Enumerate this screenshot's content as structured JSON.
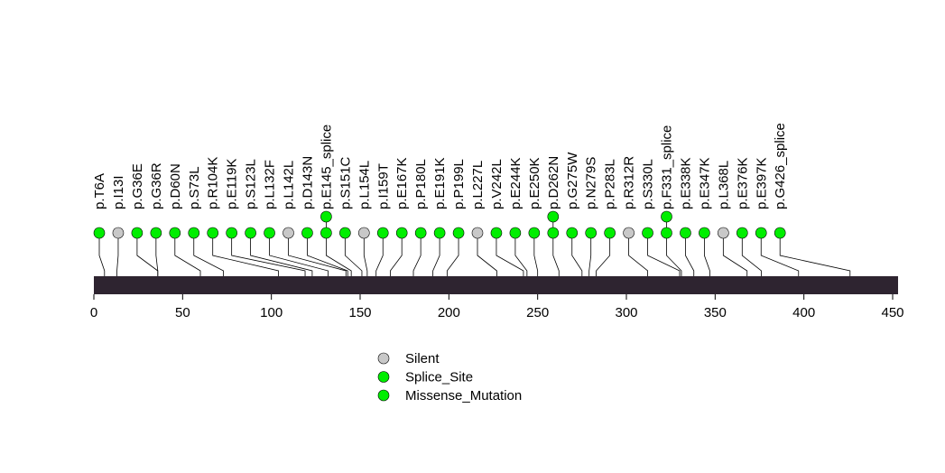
{
  "chart_data": {
    "type": "lollipop",
    "title": "",
    "xlabel": "",
    "ylabel": "",
    "protein_length": 452,
    "xlim": [
      0,
      450
    ],
    "x_ticks": [
      0,
      50,
      100,
      150,
      200,
      250,
      300,
      350,
      400,
      450
    ],
    "colors": {
      "Silent": "#c8c8c8",
      "Splice_Site": "#00ee00",
      "Missense_Mutation": "#00ee00",
      "protein_bar": "#2e2430"
    },
    "legend": [
      {
        "label": "Silent",
        "type": "Silent"
      },
      {
        "label": "Splice_Site",
        "type": "Splice_Site"
      },
      {
        "label": "Missense_Mutation",
        "type": "Missense_Mutation"
      }
    ],
    "mutations": [
      {
        "label": "p.T6A",
        "position": 6,
        "type": "Missense_Mutation"
      },
      {
        "label": "p.I13I",
        "position": 13,
        "type": "Silent"
      },
      {
        "label": "p.G36E",
        "position": 36,
        "type": "Missense_Mutation"
      },
      {
        "label": "p.G36R",
        "position": 36,
        "type": "Missense_Mutation"
      },
      {
        "label": "p.D60N",
        "position": 60,
        "type": "Missense_Mutation"
      },
      {
        "label": "p.S73L",
        "position": 73,
        "type": "Missense_Mutation"
      },
      {
        "label": "p.R104K",
        "position": 104,
        "type": "Missense_Mutation"
      },
      {
        "label": "p.E119K",
        "position": 119,
        "type": "Missense_Mutation"
      },
      {
        "label": "p.S123L",
        "position": 123,
        "type": "Missense_Mutation"
      },
      {
        "label": "p.L132F",
        "position": 132,
        "type": "Missense_Mutation"
      },
      {
        "label": "p.L142L",
        "position": 142,
        "type": "Silent"
      },
      {
        "label": "p.D143N",
        "position": 143,
        "type": "Missense_Mutation"
      },
      {
        "label": "p.E145_splice",
        "position": 145,
        "type": "Splice_Site",
        "count": 2
      },
      {
        "label": "p.S151C",
        "position": 151,
        "type": "Missense_Mutation"
      },
      {
        "label": "p.L154L",
        "position": 154,
        "type": "Silent"
      },
      {
        "label": "p.I159T",
        "position": 159,
        "type": "Missense_Mutation"
      },
      {
        "label": "p.E167K",
        "position": 167,
        "type": "Missense_Mutation"
      },
      {
        "label": "p.P180L",
        "position": 180,
        "type": "Missense_Mutation"
      },
      {
        "label": "p.E191K",
        "position": 191,
        "type": "Missense_Mutation"
      },
      {
        "label": "p.P199L",
        "position": 199,
        "type": "Missense_Mutation"
      },
      {
        "label": "p.L227L",
        "position": 227,
        "type": "Silent"
      },
      {
        "label": "p.V242L",
        "position": 242,
        "type": "Missense_Mutation"
      },
      {
        "label": "p.E244K",
        "position": 244,
        "type": "Missense_Mutation"
      },
      {
        "label": "p.E250K",
        "position": 250,
        "type": "Missense_Mutation"
      },
      {
        "label": "p.D262N",
        "position": 262,
        "type": "Missense_Mutation",
        "count": 2
      },
      {
        "label": "p.G275W",
        "position": 275,
        "type": "Missense_Mutation"
      },
      {
        "label": "p.N279S",
        "position": 279,
        "type": "Missense_Mutation"
      },
      {
        "label": "p.P283L",
        "position": 283,
        "type": "Missense_Mutation"
      },
      {
        "label": "p.R312R",
        "position": 312,
        "type": "Silent"
      },
      {
        "label": "p.S330L",
        "position": 330,
        "type": "Missense_Mutation"
      },
      {
        "label": "p.F331_splice",
        "position": 331,
        "type": "Splice_Site",
        "count": 2
      },
      {
        "label": "p.E338K",
        "position": 338,
        "type": "Missense_Mutation"
      },
      {
        "label": "p.E347K",
        "position": 347,
        "type": "Missense_Mutation"
      },
      {
        "label": "p.L368L",
        "position": 368,
        "type": "Silent"
      },
      {
        "label": "p.E376K",
        "position": 376,
        "type": "Missense_Mutation"
      },
      {
        "label": "p.E397K",
        "position": 397,
        "type": "Missense_Mutation"
      },
      {
        "label": "p.G426_splice",
        "position": 426,
        "type": "Splice_Site"
      }
    ]
  }
}
